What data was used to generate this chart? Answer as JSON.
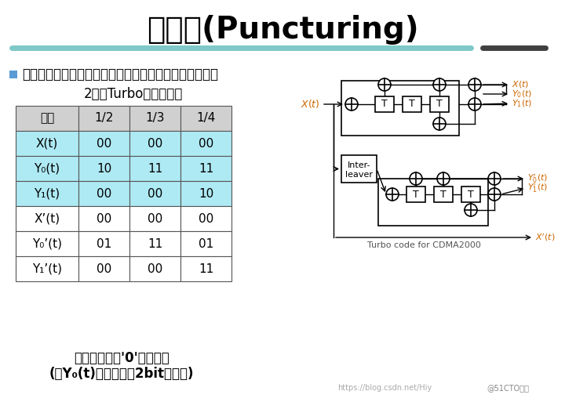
{
  "title": "删余器(Puncturing)",
  "subtitle": "□删余器按照一定的规则删除部分比特，以实现码率的改变",
  "table_title": "2节拍Turbo码删除图案",
  "bg_color": "#FFFFFF",
  "title_color": "#000000",
  "header_bg": "#E8E8E8",
  "row_bg_cyan": "#B2EEF4",
  "row_bg_white": "#FFFFFF",
  "table_headers": [
    "码率",
    "1/2",
    "1/3",
    "1/4"
  ],
  "table_rows": [
    [
      "X(t)",
      "00",
      "00",
      "00"
    ],
    [
      "Y₀(t)",
      "10",
      "11",
      "11"
    ],
    [
      "Y₁(t)",
      "00",
      "00",
      "10"
    ],
    [
      "X’(t)",
      "00",
      "00",
      "00"
    ],
    [
      "Y₀’(t)",
      "01",
      "11",
      "01"
    ],
    [
      "Y₁’(t)",
      "00",
      "00",
      "11"
    ]
  ],
  "row_colors": [
    "cyan",
    "cyan",
    "cyan",
    "white",
    "white",
    "white"
  ],
  "footnote1": "删除图案中的'0'表示删除",
  "footnote2": "(如Y₀(t)连续输出的2bit删一次)",
  "turbo_label": "Turbo code for CDMA2000",
  "watermark1": "https://blog.csdn.net/Hiy",
  "watermark2": "@51CTO博客"
}
